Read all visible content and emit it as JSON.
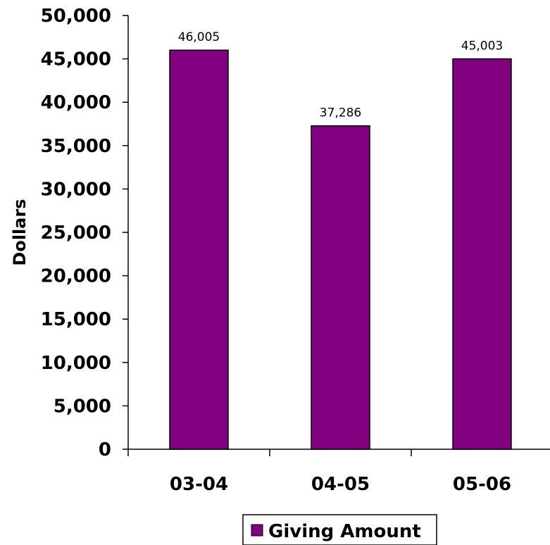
{
  "chart_data": {
    "type": "bar",
    "categories": [
      "03-04",
      "04-05",
      "05-06"
    ],
    "series": [
      {
        "name": "Giving Amount",
        "values": [
          46005,
          37286,
          45003
        ],
        "color": "#800080"
      }
    ],
    "data_labels": [
      "46,005",
      "37,286",
      "45,003"
    ],
    "ylabel": "Dollars",
    "xlabel": "",
    "title": "",
    "ylim": [
      0,
      50000
    ],
    "yticks": [
      0,
      5000,
      10000,
      15000,
      20000,
      25000,
      30000,
      35000,
      40000,
      45000,
      50000
    ],
    "ytick_labels": [
      "0",
      "5,000",
      "10,000",
      "15,000",
      "20,000",
      "25,000",
      "30,000",
      "35,000",
      "40,000",
      "45,000",
      "50,000"
    ],
    "grid": false,
    "legend": {
      "position": "bottom",
      "label": "Giving Amount"
    }
  }
}
